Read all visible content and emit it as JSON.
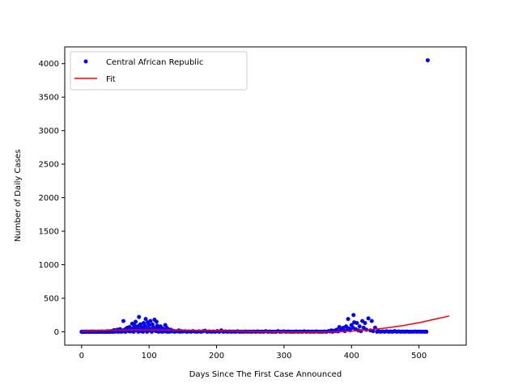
{
  "chart_data": {
    "type": "scatter",
    "title": "",
    "xlabel": "Days Since The First Case Announced",
    "ylabel": "Number of Daily Cases",
    "xlim": [
      -25,
      570
    ],
    "ylim": [
      -200,
      4250
    ],
    "xticks": [
      0,
      100,
      200,
      300,
      400,
      500
    ],
    "yticks": [
      0,
      500,
      1000,
      1500,
      2000,
      2500,
      3000,
      3500,
      4000
    ],
    "grid": false,
    "legend_position": "top-left",
    "series": [
      {
        "name": "Central African Republic",
        "kind": "points",
        "color": "#0000ff",
        "points": [
          [
            0,
            0
          ],
          [
            1,
            0
          ],
          [
            2,
            0
          ],
          [
            3,
            1
          ],
          [
            4,
            0
          ],
          [
            5,
            0
          ],
          [
            6,
            0
          ],
          [
            7,
            2
          ],
          [
            8,
            0
          ],
          [
            9,
            0
          ],
          [
            10,
            0
          ],
          [
            11,
            1
          ],
          [
            12,
            0
          ],
          [
            13,
            0
          ],
          [
            14,
            0
          ],
          [
            15,
            3
          ],
          [
            16,
            0
          ],
          [
            17,
            0
          ],
          [
            18,
            0
          ],
          [
            19,
            2
          ],
          [
            20,
            0
          ],
          [
            21,
            0
          ],
          [
            22,
            1
          ],
          [
            23,
            0
          ],
          [
            24,
            0
          ],
          [
            25,
            0
          ],
          [
            26,
            4
          ],
          [
            27,
            0
          ],
          [
            28,
            0
          ],
          [
            29,
            0
          ],
          [
            30,
            5
          ],
          [
            31,
            0
          ],
          [
            32,
            0
          ],
          [
            33,
            2
          ],
          [
            34,
            0
          ],
          [
            35,
            0
          ],
          [
            36,
            0
          ],
          [
            37,
            6
          ],
          [
            38,
            0
          ],
          [
            39,
            0
          ],
          [
            40,
            8
          ],
          [
            41,
            0
          ],
          [
            42,
            0
          ],
          [
            43,
            3
          ],
          [
            44,
            10
          ],
          [
            45,
            0
          ],
          [
            46,
            0
          ],
          [
            47,
            12
          ],
          [
            48,
            25
          ],
          [
            49,
            0
          ],
          [
            50,
            8
          ],
          [
            51,
            20
          ],
          [
            52,
            5
          ],
          [
            53,
            30
          ],
          [
            54,
            0
          ],
          [
            55,
            15
          ],
          [
            56,
            2
          ],
          [
            57,
            40
          ],
          [
            58,
            10
          ],
          [
            59,
            0
          ],
          [
            60,
            20
          ],
          [
            61,
            5
          ],
          [
            62,
            160
          ],
          [
            63,
            10
          ],
          [
            64,
            30
          ],
          [
            65,
            0
          ],
          [
            66,
            45
          ],
          [
            67,
            15
          ],
          [
            68,
            60
          ],
          [
            69,
            25
          ],
          [
            70,
            10
          ],
          [
            71,
            70
          ],
          [
            72,
            5
          ],
          [
            73,
            40
          ],
          [
            74,
            30
          ],
          [
            75,
            120
          ],
          [
            76,
            50
          ],
          [
            77,
            0
          ],
          [
            78,
            100
          ],
          [
            79,
            20
          ],
          [
            80,
            150
          ],
          [
            81,
            60
          ],
          [
            82,
            30
          ],
          [
            83,
            80
          ],
          [
            84,
            0
          ],
          [
            85,
            220
          ],
          [
            86,
            40
          ],
          [
            87,
            110
          ],
          [
            88,
            10
          ],
          [
            89,
            70
          ],
          [
            90,
            20
          ],
          [
            91,
            0
          ],
          [
            92,
            130
          ],
          [
            93,
            50
          ],
          [
            94,
            90
          ],
          [
            95,
            190
          ],
          [
            96,
            30
          ],
          [
            97,
            0
          ],
          [
            98,
            140
          ],
          [
            99,
            60
          ],
          [
            100,
            100
          ],
          [
            101,
            20
          ],
          [
            102,
            160
          ],
          [
            103,
            40
          ],
          [
            104,
            0
          ],
          [
            105,
            110
          ],
          [
            106,
            70
          ],
          [
            107,
            30
          ],
          [
            108,
            180
          ],
          [
            109,
            50
          ],
          [
            110,
            10
          ],
          [
            111,
            150
          ],
          [
            112,
            90
          ],
          [
            113,
            40
          ],
          [
            114,
            0
          ],
          [
            115,
            60
          ],
          [
            116,
            20
          ],
          [
            117,
            80
          ],
          [
            118,
            30
          ],
          [
            119,
            0
          ],
          [
            120,
            50
          ],
          [
            121,
            10
          ],
          [
            122,
            30
          ],
          [
            123,
            5
          ],
          [
            124,
            100
          ],
          [
            125,
            20
          ],
          [
            126,
            60
          ],
          [
            127,
            0
          ],
          [
            128,
            40
          ],
          [
            129,
            10
          ],
          [
            130,
            0
          ],
          [
            132,
            30
          ],
          [
            134,
            5
          ],
          [
            136,
            15
          ],
          [
            138,
            0
          ],
          [
            140,
            10
          ],
          [
            142,
            5
          ],
          [
            144,
            20
          ],
          [
            146,
            0
          ],
          [
            148,
            10
          ],
          [
            150,
            3
          ],
          [
            153,
            8
          ],
          [
            156,
            0
          ],
          [
            159,
            5
          ],
          [
            162,
            0
          ],
          [
            165,
            10
          ],
          [
            168,
            2
          ],
          [
            171,
            0
          ],
          [
            174,
            6
          ],
          [
            177,
            0
          ],
          [
            180,
            8
          ],
          [
            183,
            15
          ],
          [
            186,
            0
          ],
          [
            189,
            5
          ],
          [
            192,
            0
          ],
          [
            195,
            3
          ],
          [
            198,
            0
          ],
          [
            201,
            10
          ],
          [
            204,
            0
          ],
          [
            207,
            20
          ],
          [
            210,
            0
          ],
          [
            213,
            5
          ],
          [
            216,
            0
          ],
          [
            219,
            3
          ],
          [
            222,
            0
          ],
          [
            225,
            2
          ],
          [
            228,
            0
          ],
          [
            231,
            6
          ],
          [
            234,
            0
          ],
          [
            237,
            1
          ],
          [
            240,
            0
          ],
          [
            243,
            4
          ],
          [
            246,
            0
          ],
          [
            249,
            2
          ],
          [
            252,
            0
          ],
          [
            255,
            3
          ],
          [
            258,
            0
          ],
          [
            261,
            5
          ],
          [
            264,
            0
          ],
          [
            267,
            2
          ],
          [
            270,
            0
          ],
          [
            273,
            8
          ],
          [
            276,
            0
          ],
          [
            279,
            3
          ],
          [
            282,
            0
          ],
          [
            285,
            1
          ],
          [
            288,
            0
          ],
          [
            291,
            10
          ],
          [
            294,
            0
          ],
          [
            297,
            2
          ],
          [
            300,
            5
          ],
          [
            303,
            0
          ],
          [
            306,
            3
          ],
          [
            309,
            0
          ],
          [
            312,
            1
          ],
          [
            315,
            0
          ],
          [
            318,
            4
          ],
          [
            321,
            0
          ],
          [
            324,
            2
          ],
          [
            327,
            0
          ],
          [
            330,
            6
          ],
          [
            333,
            0
          ],
          [
            336,
            3
          ],
          [
            339,
            0
          ],
          [
            342,
            2
          ],
          [
            345,
            0
          ],
          [
            348,
            5
          ],
          [
            351,
            0
          ],
          [
            354,
            1
          ],
          [
            357,
            0
          ],
          [
            360,
            3
          ],
          [
            363,
            0
          ],
          [
            366,
            10
          ],
          [
            368,
            5
          ],
          [
            370,
            20
          ],
          [
            372,
            0
          ],
          [
            374,
            15
          ],
          [
            376,
            10
          ],
          [
            378,
            30
          ],
          [
            380,
            5
          ],
          [
            382,
            70
          ],
          [
            384,
            20
          ],
          [
            386,
            40
          ],
          [
            388,
            60
          ],
          [
            390,
            10
          ],
          [
            392,
            80
          ],
          [
            394,
            30
          ],
          [
            395,
            190
          ],
          [
            396,
            50
          ],
          [
            398,
            20
          ],
          [
            400,
            100
          ],
          [
            402,
            60
          ],
          [
            403,
            250
          ],
          [
            404,
            140
          ],
          [
            406,
            40
          ],
          [
            408,
            130
          ],
          [
            410,
            20
          ],
          [
            412,
            80
          ],
          [
            414,
            10
          ],
          [
            416,
            160
          ],
          [
            418,
            60
          ],
          [
            420,
            130
          ],
          [
            422,
            30
          ],
          [
            425,
            200
          ],
          [
            428,
            20
          ],
          [
            430,
            160
          ],
          [
            432,
            10
          ],
          [
            435,
            60
          ],
          [
            438,
            0
          ],
          [
            440,
            10
          ],
          [
            443,
            0
          ],
          [
            446,
            5
          ],
          [
            449,
            0
          ],
          [
            452,
            8
          ],
          [
            455,
            0
          ],
          [
            458,
            3
          ],
          [
            461,
            0
          ],
          [
            464,
            10
          ],
          [
            467,
            0
          ],
          [
            470,
            5
          ],
          [
            473,
            0
          ],
          [
            476,
            2
          ],
          [
            479,
            0
          ],
          [
            482,
            4
          ],
          [
            485,
            0
          ],
          [
            488,
            1
          ],
          [
            491,
            0
          ],
          [
            494,
            3
          ],
          [
            497,
            0
          ],
          [
            500,
            2
          ],
          [
            503,
            0
          ],
          [
            506,
            1
          ],
          [
            509,
            0
          ],
          [
            511,
            0
          ],
          [
            513,
            4050
          ]
        ]
      },
      {
        "name": "Fit",
        "kind": "line",
        "color": "#ff0000",
        "points": [
          [
            0,
            10
          ],
          [
            25,
            18
          ],
          [
            50,
            24
          ],
          [
            75,
            27
          ],
          [
            100,
            28
          ],
          [
            125,
            27
          ],
          [
            150,
            24
          ],
          [
            175,
            20
          ],
          [
            200,
            15
          ],
          [
            225,
            10
          ],
          [
            250,
            5
          ],
          [
            275,
            1
          ],
          [
            300,
            -3
          ],
          [
            325,
            -5
          ],
          [
            350,
            -5
          ],
          [
            375,
            0
          ],
          [
            400,
            10
          ],
          [
            425,
            28
          ],
          [
            450,
            55
          ],
          [
            475,
            90
          ],
          [
            500,
            135
          ],
          [
            525,
            190
          ],
          [
            545,
            235
          ]
        ]
      }
    ]
  }
}
